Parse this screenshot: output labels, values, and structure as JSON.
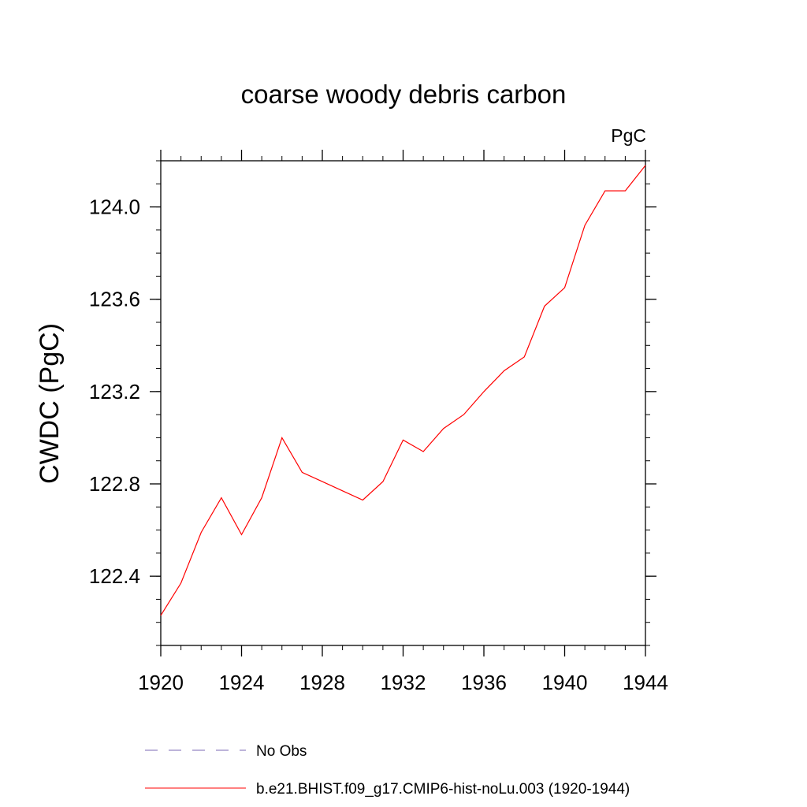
{
  "chart_data": {
    "type": "line",
    "title": "coarse woody debris carbon",
    "units_label": "PgC",
    "xlabel": "",
    "ylabel": "CWDC  (PgC)",
    "xlim": [
      1920,
      1944
    ],
    "ylim": [
      122.1,
      124.2
    ],
    "x_ticks": [
      "1920",
      "1924",
      "1928",
      "1932",
      "1936",
      "1940",
      "1944"
    ],
    "y_ticks": [
      "122.4",
      "122.8",
      "123.2",
      "123.6",
      "124.0"
    ],
    "grid": false,
    "legend_position": "bottom",
    "series": [
      {
        "name": "No Obs",
        "color": "#7b68b5",
        "dash": "dashed",
        "x": [],
        "values": []
      },
      {
        "name": "b.e21.BHIST.f09_g17.CMIP6-hist-noLu.003 (1920-1944)",
        "color": "#ff0000",
        "dash": "solid",
        "x": [
          1920,
          1921,
          1922,
          1923,
          1924,
          1925,
          1926,
          1927,
          1928,
          1929,
          1930,
          1931,
          1932,
          1933,
          1934,
          1935,
          1936,
          1937,
          1938,
          1939,
          1940,
          1941,
          1942,
          1943,
          1944
        ],
        "values": [
          122.23,
          122.37,
          122.59,
          122.74,
          122.58,
          122.74,
          123.0,
          122.85,
          122.81,
          122.77,
          122.73,
          122.81,
          122.99,
          122.94,
          123.04,
          123.1,
          123.2,
          123.29,
          123.35,
          123.57,
          123.65,
          123.92,
          124.07,
          124.07,
          124.18
        ]
      }
    ]
  }
}
